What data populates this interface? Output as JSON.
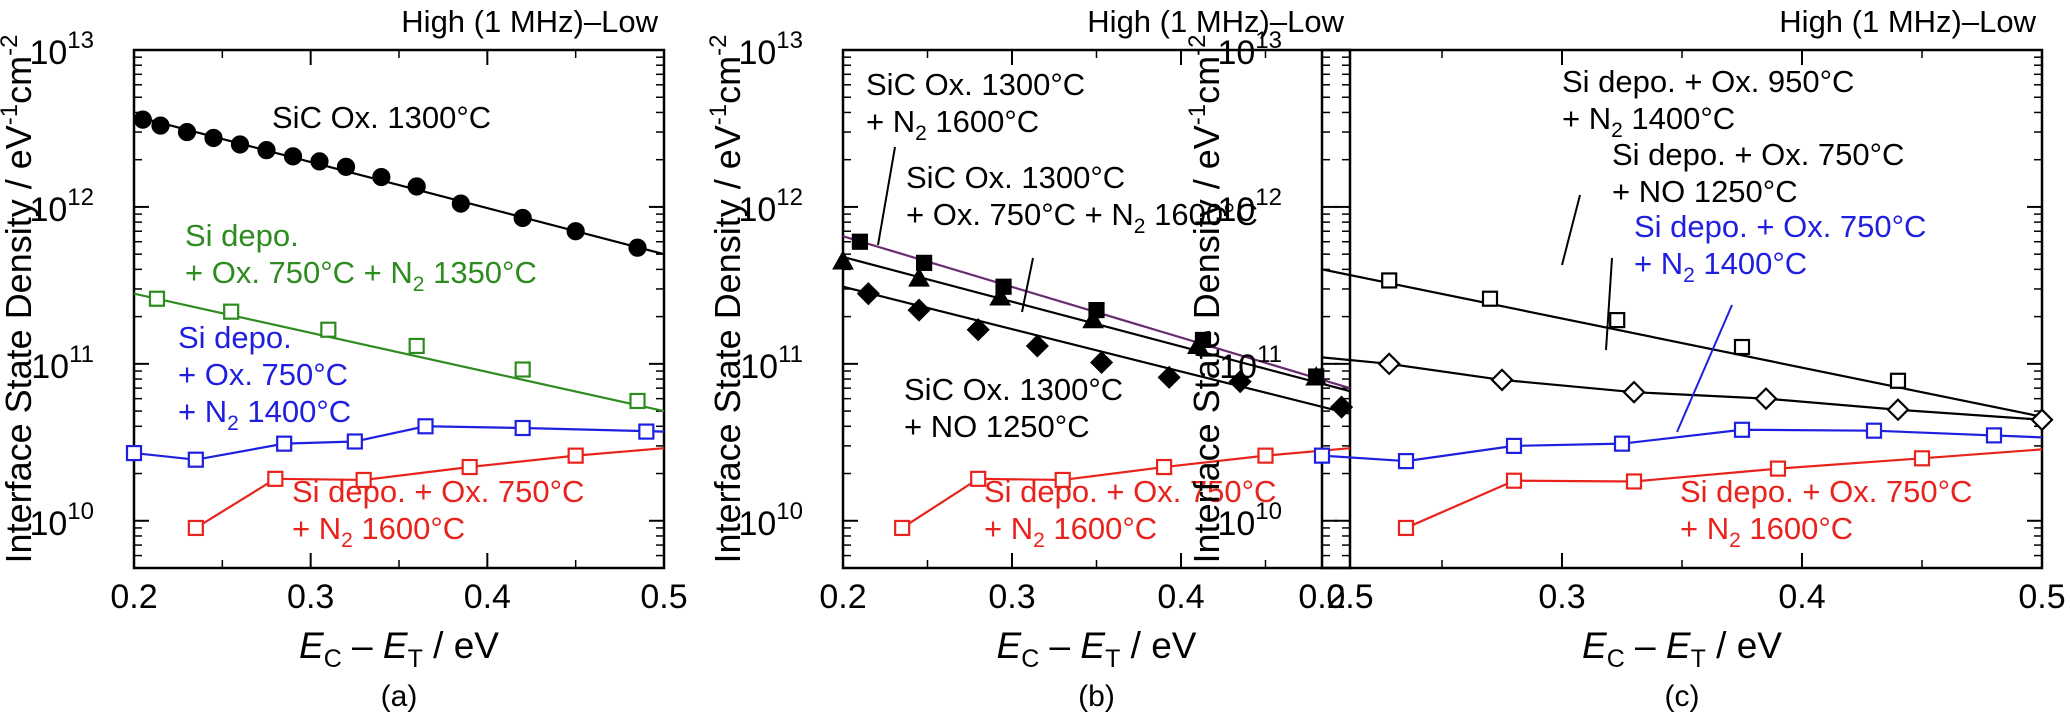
{
  "figure": {
    "y_label": "Interface State Density / eV",
    "y_label_sup1": "-1",
    "y_label_mid": "cm",
    "y_label_sup2": "-2",
    "x_label_E1": "E",
    "x_label_sub1": "C",
    "x_label_dash": " – ",
    "x_label_E2": "E",
    "x_label_sub2": "T",
    "x_label_unit": " / eV"
  },
  "colors": {
    "black": "#000000",
    "green": "#2e8b1f",
    "blue": "#1f1fe0",
    "red": "#e8231c",
    "purple": "#6a2c70"
  },
  "chart_data": [
    {
      "type": "line",
      "panel_label": "(a)",
      "title": "High (1 MHz)–Low",
      "xlim": [
        0.2,
        0.5
      ],
      "ylim": [
        5000000000.0,
        10000000000000.0
      ],
      "y_scale": "log",
      "x_ticks": [
        "0.2",
        "0.3",
        "0.4",
        "0.5"
      ],
      "y_ticks": [
        {
          "base": "10",
          "exp": "10"
        },
        {
          "base": "10",
          "exp": "11"
        },
        {
          "base": "10",
          "exp": "12"
        },
        {
          "base": "10",
          "exp": "13"
        }
      ],
      "series": [
        {
          "label_lines": [
            [
              "SiC Ox. 1300°C"
            ]
          ],
          "color": "black",
          "marker": "filled-circle",
          "x": [
            0.205,
            0.215,
            0.23,
            0.245,
            0.26,
            0.275,
            0.29,
            0.305,
            0.32,
            0.34,
            0.36,
            0.385,
            0.42,
            0.45,
            0.485
          ],
          "y": [
            3600000000000.0,
            3300000000000.0,
            3000000000000.0,
            2750000000000.0,
            2500000000000.0,
            2300000000000.0,
            2100000000000.0,
            1950000000000.0,
            1800000000000.0,
            1550000000000.0,
            1350000000000.0,
            1050000000000.0,
            850000000000.0,
            700000000000.0,
            550000000000.0
          ],
          "fit_x": [
            0.2,
            0.5
          ],
          "fit_y": [
            3800000000000.0,
            500000000000.0
          ]
        },
        {
          "label_lines": [
            [
              "Si depo."
            ],
            [
              "+ Ox. 750°C + N",
              "2",
              " 1350°C"
            ]
          ],
          "color": "green",
          "marker": "open-square",
          "x": [
            0.213,
            0.255,
            0.31,
            0.36,
            0.42,
            0.485
          ],
          "y": [
            260000000000.0,
            215000000000.0,
            165000000000.0,
            130000000000.0,
            92000000000.0,
            58000000000.0
          ],
          "fit_x": [
            0.2,
            0.5
          ],
          "fit_y": [
            280000000000.0,
            50000000000.0
          ]
        },
        {
          "label_lines": [
            [
              "Si depo."
            ],
            [
              "+ Ox. 750°C"
            ],
            [
              "+ N",
              "2",
              " 1400°C"
            ]
          ],
          "color": "blue",
          "marker": "open-square",
          "x": [
            0.2,
            0.235,
            0.285,
            0.325,
            0.365,
            0.42,
            0.49
          ],
          "y": [
            27000000000.0,
            24500000000.0,
            31000000000.0,
            32000000000.0,
            40000000000.0,
            39000000000.0,
            37000000000.0
          ],
          "fit_x": [
            0.2,
            0.235,
            0.285,
            0.325,
            0.365,
            0.42,
            0.5
          ],
          "fit_y": [
            27000000000.0,
            24500000000.0,
            31000000000.0,
            32000000000.0,
            40000000000.0,
            39000000000.0,
            37000000000.0
          ]
        },
        {
          "label_lines": [
            [
              "Si depo. + Ox. 750°C"
            ],
            [
              "+ N",
              "2",
              " 1600°C"
            ]
          ],
          "color": "red",
          "marker": "open-square",
          "x": [
            0.235,
            0.28,
            0.33,
            0.39,
            0.45
          ],
          "y": [
            9000000000.0,
            18500000000.0,
            18200000000.0,
            22000000000.0,
            26000000000.0
          ],
          "fit_x": [
            0.235,
            0.28,
            0.33,
            0.39,
            0.45,
            0.5
          ],
          "fit_y": [
            9000000000.0,
            18500000000.0,
            18200000000.0,
            22000000000.0,
            26000000000.0,
            29000000000.0
          ]
        }
      ]
    },
    {
      "type": "line",
      "panel_label": "(b)",
      "title": "High (1 MHz)–Low",
      "xlim": [
        0.2,
        0.5
      ],
      "ylim": [
        5000000000.0,
        10000000000000.0
      ],
      "y_scale": "log",
      "x_ticks": [
        "0.2",
        "0.3",
        "0.4",
        "0.5"
      ],
      "y_ticks": [
        {
          "base": "10",
          "exp": "10"
        },
        {
          "base": "10",
          "exp": "11"
        },
        {
          "base": "10",
          "exp": "12"
        },
        {
          "base": "10",
          "exp": "13"
        }
      ],
      "series": [
        {
          "label_lines": [
            [
              "SiC Ox. 1300°C"
            ],
            [
              "+ N",
              "2",
              " 1600°C"
            ]
          ],
          "color": "black",
          "marker": "filled-square",
          "x": [
            0.21,
            0.248,
            0.295,
            0.35,
            0.413,
            0.48
          ],
          "y": [
            600000000000.0,
            440000000000.0,
            310000000000.0,
            220000000000.0,
            142000000000.0,
            83000000000.0
          ],
          "fit_x": [
            0.2,
            0.5
          ],
          "fit_y": [
            650000000000.0,
            70000000000.0
          ]
        },
        {
          "label_lines": [
            [
              "SiC Ox. 1300°C"
            ],
            [
              "+ Ox. 750°C + N",
              "2",
              " 1600°C"
            ]
          ],
          "color": "black",
          "marker": "filled-triangle",
          "x": [
            0.2,
            0.245,
            0.293,
            0.348,
            0.41,
            0.48
          ],
          "y": [
            450000000000.0,
            350000000000.0,
            265000000000.0,
            190000000000.0,
            130000000000.0,
            82000000000.0
          ],
          "fit_x": [
            0.2,
            0.5
          ],
          "fit_y": [
            480000000000.0,
            67000000000.0
          ]
        },
        {
          "label_lines": [
            [
              "SiC Ox. 1300°C"
            ],
            [
              "+ NO 1250°C"
            ]
          ],
          "color": "black",
          "marker": "filled-diamond",
          "x": [
            0.215,
            0.245,
            0.28,
            0.315,
            0.353,
            0.393,
            0.435,
            0.495
          ],
          "y": [
            280000000000.0,
            220000000000.0,
            165000000000.0,
            130000000000.0,
            102000000000.0,
            82000000000.0,
            77000000000.0,
            53000000000.0
          ],
          "fit_x": [
            0.2,
            0.5
          ],
          "fit_y": [
            310000000000.0,
            48000000000.0
          ]
        },
        {
          "label_lines": [
            [
              "Si depo. + Ox. 750°C"
            ],
            [
              "+ N",
              "2",
              " 1600°C"
            ]
          ],
          "color": "red",
          "marker": "open-square",
          "x": [
            0.235,
            0.28,
            0.33,
            0.39,
            0.45
          ],
          "y": [
            9000000000.0,
            18500000000.0,
            18200000000.0,
            22000000000.0,
            26000000000.0
          ],
          "fit_x": [
            0.235,
            0.28,
            0.33,
            0.39,
            0.45,
            0.5
          ],
          "fit_y": [
            9000000000.0,
            18500000000.0,
            18200000000.0,
            22000000000.0,
            26000000000.0,
            29000000000.0
          ]
        }
      ]
    },
    {
      "type": "line",
      "panel_label": "(c)",
      "title": "High (1 MHz)–Low",
      "xlim": [
        0.2,
        0.5
      ],
      "ylim": [
        5000000000.0,
        10000000000000.0
      ],
      "y_scale": "log",
      "x_ticks": [
        "0.2",
        "0.3",
        "0.4",
        "0.5"
      ],
      "y_ticks": [
        {
          "base": "10",
          "exp": "10"
        },
        {
          "base": "10",
          "exp": "11"
        },
        {
          "base": "10",
          "exp": "12"
        },
        {
          "base": "10",
          "exp": "13"
        }
      ],
      "series": [
        {
          "label_lines": [
            [
              "Si depo. + Ox. 950°C"
            ],
            [
              "+ N",
              "2",
              " 1400°C"
            ]
          ],
          "color": "black",
          "marker": "open-square",
          "x": [
            0.228,
            0.27,
            0.323,
            0.375,
            0.44
          ],
          "y": [
            340000000000.0,
            260000000000.0,
            190000000000.0,
            128000000000.0,
            78000000000.0
          ],
          "fit_x": [
            0.2,
            0.5
          ],
          "fit_y": [
            400000000000.0,
            46000000000.0
          ]
        },
        {
          "label_lines": [
            [
              "Si depo. + Ox. 750°C"
            ],
            [
              "+ NO 1250°C"
            ]
          ],
          "color": "black",
          "marker": "open-diamond",
          "x": [
            0.228,
            0.275,
            0.33,
            0.385,
            0.44,
            0.5
          ],
          "y": [
            100000000000.0,
            79000000000.0,
            66000000000.0,
            60000000000.0,
            51000000000.0,
            44000000000.0
          ],
          "fit_x": [
            0.2,
            0.228,
            0.275,
            0.33,
            0.385,
            0.44,
            0.5
          ],
          "fit_y": [
            110000000000.0,
            100000000000.0,
            79000000000.0,
            66000000000.0,
            60000000000.0,
            51000000000.0,
            44000000000.0
          ]
        },
        {
          "label_lines": [
            [
              "Si depo. + Ox. 750°C"
            ],
            [
              "+ N",
              "2",
              " 1400°C"
            ]
          ],
          "color": "blue",
          "marker": "open-square",
          "x": [
            0.2,
            0.235,
            0.28,
            0.325,
            0.375,
            0.43,
            0.48
          ],
          "y": [
            26000000000.0,
            24000000000.0,
            30000000000.0,
            31000000000.0,
            38000000000.0,
            37500000000.0,
            35000000000.0
          ],
          "fit_x": [
            0.2,
            0.235,
            0.28,
            0.325,
            0.375,
            0.43,
            0.5
          ],
          "fit_y": [
            26000000000.0,
            24000000000.0,
            30000000000.0,
            31000000000.0,
            38000000000.0,
            37500000000.0,
            34000000000.0
          ]
        },
        {
          "label_lines": [
            [
              "Si depo. + Ox. 750°C"
            ],
            [
              "+ N",
              "2",
              " 1600°C"
            ]
          ],
          "color": "red",
          "marker": "open-square",
          "x": [
            0.235,
            0.28,
            0.33,
            0.39,
            0.45
          ],
          "y": [
            9000000000.0,
            18000000000.0,
            17800000000.0,
            21500000000.0,
            25000000000.0
          ],
          "fit_x": [
            0.235,
            0.28,
            0.33,
            0.39,
            0.45,
            0.5
          ],
          "fit_y": [
            9000000000.0,
            18000000000.0,
            17800000000.0,
            21500000000.0,
            25000000000.0,
            28500000000.0
          ]
        }
      ]
    }
  ]
}
